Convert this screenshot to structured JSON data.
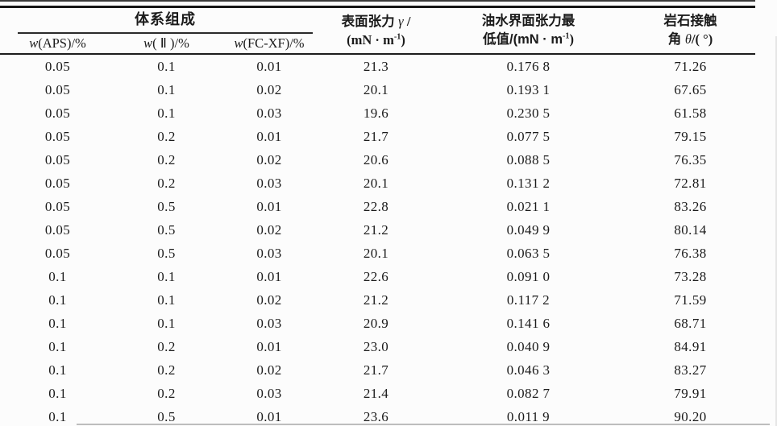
{
  "header": {
    "group": "体系组成",
    "sub": [
      {
        "var": "w",
        "rest": "(APS)/%"
      },
      {
        "var": "w",
        "rest": "( Ⅱ )/%"
      },
      {
        "var": "w",
        "rest": "(FC-XF)/%"
      }
    ],
    "surface_tension": {
      "l1a": "表面张力 ",
      "l1b": "γ",
      "l1c": " /",
      "l2a": "(mN · m",
      "sup": "-1",
      "l2b": ")"
    },
    "ift": {
      "l1": "油水界面张力最",
      "l2a": "低值/(mN · m",
      "sup": "-1",
      "l2b": ")"
    },
    "contact_angle": {
      "l1": "岩石接触",
      "l2a": "角 ",
      "l2b": "θ",
      "l2c": "/( °)"
    }
  },
  "rows": [
    [
      "0.05",
      "0.1",
      "0.01",
      "21.3",
      "0.176 8",
      "71.26"
    ],
    [
      "0.05",
      "0.1",
      "0.02",
      "20.1",
      "0.193 1",
      "67.65"
    ],
    [
      "0.05",
      "0.1",
      "0.03",
      "19.6",
      "0.230 5",
      "61.58"
    ],
    [
      "0.05",
      "0.2",
      "0.01",
      "21.7",
      "0.077 5",
      "79.15"
    ],
    [
      "0.05",
      "0.2",
      "0.02",
      "20.6",
      "0.088 5",
      "76.35"
    ],
    [
      "0.05",
      "0.2",
      "0.03",
      "20.1",
      "0.131 2",
      "72.81"
    ],
    [
      "0.05",
      "0.5",
      "0.01",
      "22.8",
      "0.021 1",
      "83.26"
    ],
    [
      "0.05",
      "0.5",
      "0.02",
      "21.2",
      "0.049 9",
      "80.14"
    ],
    [
      "0.05",
      "0.5",
      "0.03",
      "20.1",
      "0.063 5",
      "76.38"
    ],
    [
      "0.1",
      "0.1",
      "0.01",
      "22.6",
      "0.091 0",
      "73.28"
    ],
    [
      "0.1",
      "0.1",
      "0.02",
      "21.2",
      "0.117 2",
      "71.59"
    ],
    [
      "0.1",
      "0.1",
      "0.03",
      "20.9",
      "0.141 6",
      "68.71"
    ],
    [
      "0.1",
      "0.2",
      "0.01",
      "23.0",
      "0.040 9",
      "84.91"
    ],
    [
      "0.1",
      "0.2",
      "0.02",
      "21.7",
      "0.046 3",
      "83.27"
    ],
    [
      "0.1",
      "0.2",
      "0.03",
      "21.4",
      "0.082 7",
      "79.91"
    ],
    [
      "0.1",
      "0.5",
      "0.01",
      "23.6",
      "0.011 9",
      "90.20"
    ]
  ],
  "ink_color": "#1b1b1b",
  "rule_color": "#161616"
}
